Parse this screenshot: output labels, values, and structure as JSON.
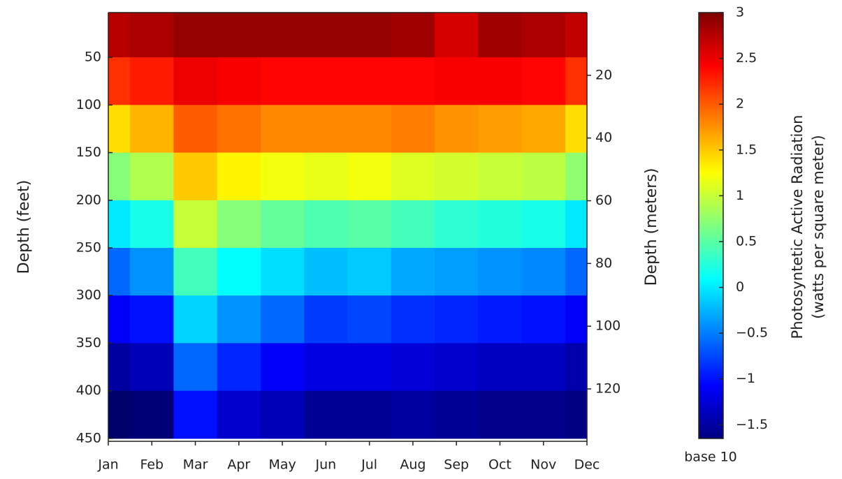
{
  "chart_data": {
    "type": "contour",
    "categories": [
      "Jan",
      "Feb",
      "Mar",
      "Apr",
      "May",
      "Jun",
      "Jul",
      "Aug",
      "Sep",
      "Oct",
      "Nov",
      "Dec"
    ],
    "y": [
      25,
      75,
      125,
      175,
      225,
      275,
      325,
      375,
      425
    ],
    "z": [
      [
        2.75,
        2.8,
        2.9,
        2.9,
        2.9,
        2.9,
        2.9,
        2.85,
        2.6,
        2.85,
        2.8,
        2.7
      ],
      [
        2.2,
        2.3,
        2.5,
        2.45,
        2.4,
        2.4,
        2.4,
        2.4,
        2.45,
        2.45,
        2.4,
        2.2
      ],
      [
        1.4,
        1.6,
        2.0,
        1.9,
        1.8,
        1.8,
        1.8,
        1.85,
        1.75,
        1.7,
        1.65,
        1.4
      ],
      [
        0.7,
        0.9,
        1.5,
        1.3,
        1.2,
        1.15,
        1.2,
        1.1,
        1.05,
        1.0,
        0.95,
        0.75
      ],
      [
        0.0,
        0.2,
        1.0,
        0.7,
        0.55,
        0.45,
        0.5,
        0.4,
        0.3,
        0.25,
        0.2,
        0.0
      ],
      [
        -0.6,
        -0.4,
        0.4,
        0.1,
        -0.05,
        -0.2,
        -0.15,
        -0.3,
        -0.35,
        -0.4,
        -0.45,
        -0.6
      ],
      [
        -1.1,
        -1.0,
        -0.1,
        -0.4,
        -0.6,
        -0.8,
        -0.75,
        -0.85,
        -0.9,
        -0.95,
        -1.0,
        -1.1
      ],
      [
        -1.5,
        -1.4,
        -0.6,
        -0.9,
        -1.1,
        -1.2,
        -1.2,
        -1.25,
        -1.3,
        -1.35,
        -1.35,
        -1.45
      ],
      [
        -1.75,
        -1.7,
        -1.0,
        -1.3,
        -1.4,
        -1.55,
        -1.55,
        -1.5,
        -1.55,
        -1.6,
        -1.6,
        -1.65
      ]
    ],
    "ylabel": "Depth (feet)",
    "ylim": [
      3,
      453
    ],
    "y_inverted": true,
    "yticks": [
      50,
      100,
      150,
      200,
      250,
      300,
      350,
      400,
      450
    ],
    "y2label": "Depth (meters)",
    "y2lim": [
      0,
      136.7
    ],
    "y2ticks": [
      20,
      40,
      60,
      80,
      100,
      120
    ],
    "colormap": "jet",
    "colorbar": {
      "label": [
        "Photosyntetic Active Radiation",
        "(watts per square meter)"
      ],
      "note": "base 10",
      "zlim": [
        -1.65,
        3
      ],
      "zticks": [
        {
          "value": -1.5,
          "label": "−1.5"
        },
        {
          "value": -1,
          "label": "−1"
        },
        {
          "value": -0.5,
          "label": "−0.5"
        },
        0,
        0.5,
        1,
        1.5,
        2,
        2.5,
        3
      ]
    }
  }
}
